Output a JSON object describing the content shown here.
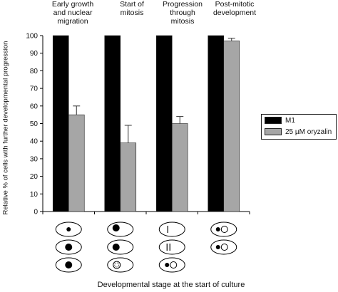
{
  "chart_data": {
    "type": "bar",
    "categories": [
      "Early growth and nuclear migration",
      "Start of mitosis",
      "Progression through mitosis",
      "Post-mitotic development"
    ],
    "series": [
      {
        "name": "M1",
        "values": [
          100,
          100,
          100,
          100
        ],
        "color": "#000000"
      },
      {
        "name": "25 µM oryzalin",
        "values": [
          55,
          39,
          50,
          97
        ],
        "errors": [
          5,
          10,
          4,
          1.5
        ],
        "color": "#a6a6a6"
      }
    ],
    "ylabel": "Relative % of cells with further developmental progression",
    "xlabel": "Developmental stage at the start of culture",
    "ylim": [
      0,
      100
    ],
    "yticks": [
      0,
      10,
      20,
      30,
      40,
      50,
      60,
      70,
      80,
      90,
      100
    ],
    "grid": false,
    "legend_position": "right"
  },
  "stage_labels": [
    [
      "Early growth",
      "and nuclear",
      "migration"
    ],
    [
      "Start of",
      "mitosis"
    ],
    [
      "Progression",
      "through",
      "mitosis"
    ],
    [
      "Post-mitotic",
      "development"
    ]
  ]
}
